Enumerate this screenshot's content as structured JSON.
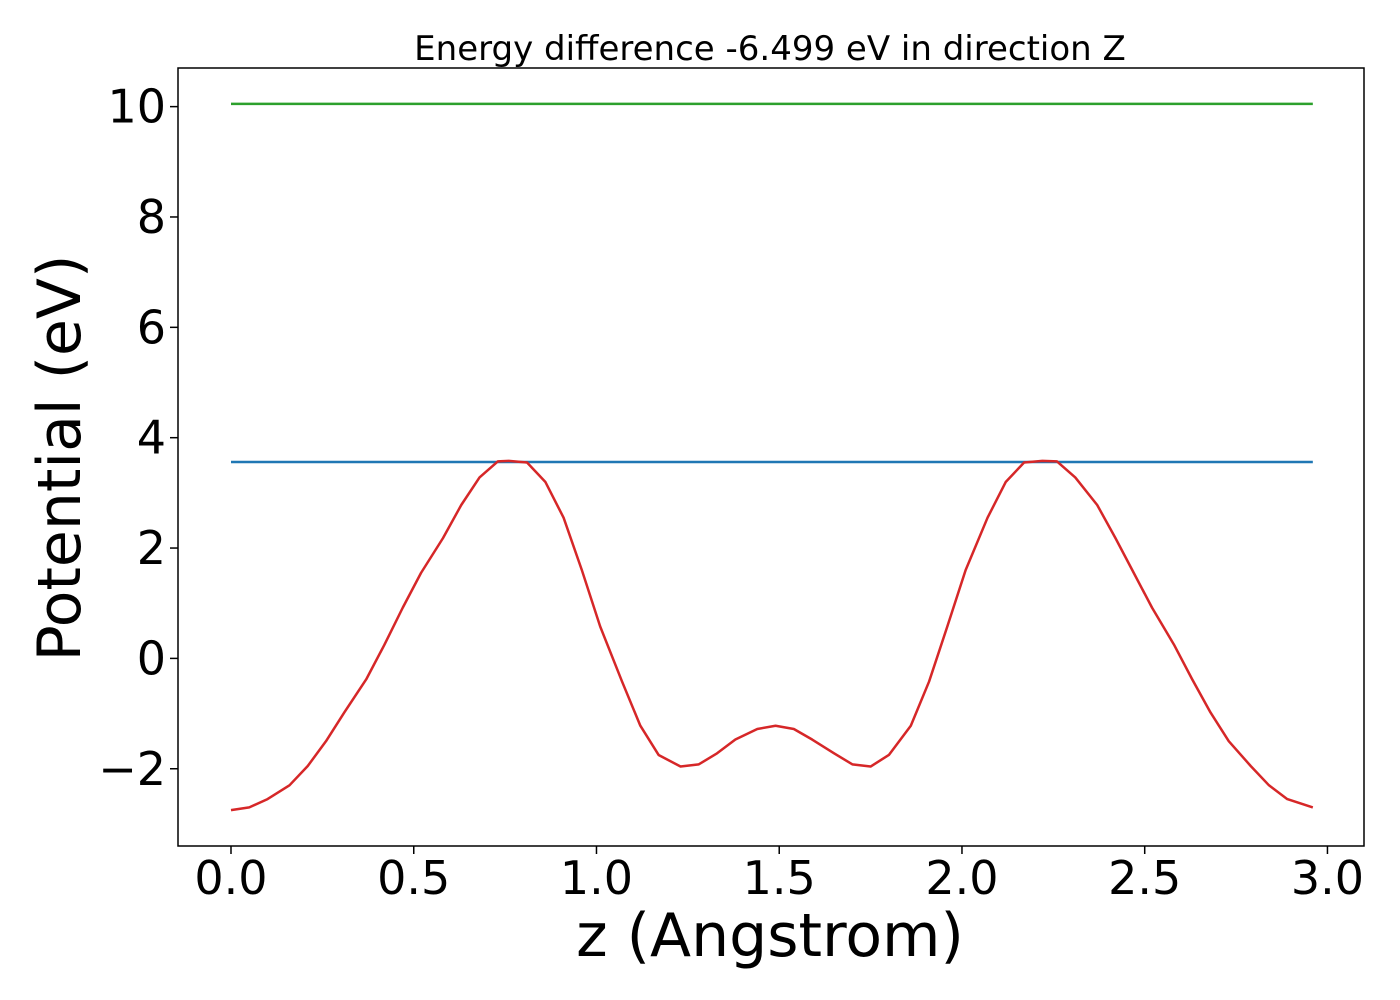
{
  "chart_data": {
    "type": "line",
    "title": "Energy difference -6.499 eV in direction Z",
    "xlabel": "z (Angstrom)",
    "ylabel": "Potential (eV)",
    "xlim": [
      -0.145,
      3.1
    ],
    "ylim": [
      -3.4,
      10.7
    ],
    "xticks": [
      0.0,
      0.5,
      1.0,
      1.5,
      2.0,
      2.5,
      3.0
    ],
    "xtick_labels": [
      "0.0",
      "0.5",
      "1.0",
      "1.5",
      "2.0",
      "2.5",
      "3.0"
    ],
    "yticks": [
      -2,
      0,
      2,
      4,
      6,
      8,
      10
    ],
    "ytick_labels": [
      "−2",
      "0",
      "2",
      "4",
      "6",
      "8",
      "10"
    ],
    "grid": false,
    "series": [
      {
        "color": "#2ca02c",
        "x": [
          0.0,
          2.96
        ],
        "y": [
          10.05,
          10.05
        ]
      },
      {
        "color": "#1f77b4",
        "x": [
          0.0,
          2.96
        ],
        "y": [
          3.56,
          3.56
        ]
      },
      {
        "color": "#d62728",
        "x": [
          0.0,
          0.05,
          0.1,
          0.16,
          0.21,
          0.26,
          0.31,
          0.37,
          0.42,
          0.47,
          0.52,
          0.58,
          0.63,
          0.68,
          0.73,
          0.76,
          0.81,
          0.86,
          0.91,
          0.96,
          1.01,
          1.07,
          1.12,
          1.17,
          1.23,
          1.28,
          1.33,
          1.38,
          1.44,
          1.49,
          1.54,
          1.59,
          1.65,
          1.7,
          1.75,
          1.8,
          1.86,
          1.91,
          1.96,
          2.01,
          2.07,
          2.12,
          2.17,
          2.22,
          2.26,
          2.31,
          2.37,
          2.42,
          2.47,
          2.52,
          2.58,
          2.63,
          2.68,
          2.73,
          2.79,
          2.84,
          2.89,
          2.96
        ],
        "y": [
          -2.75,
          -2.7,
          -2.55,
          -2.3,
          -1.95,
          -1.5,
          -0.98,
          -0.38,
          0.25,
          0.92,
          1.55,
          2.18,
          2.78,
          3.28,
          3.57,
          3.58,
          3.55,
          3.2,
          2.55,
          1.6,
          0.58,
          -0.42,
          -1.22,
          -1.75,
          -1.96,
          -1.92,
          -1.72,
          -1.47,
          -1.28,
          -1.22,
          -1.28,
          -1.47,
          -1.72,
          -1.92,
          -1.96,
          -1.75,
          -1.22,
          -0.42,
          0.58,
          1.6,
          2.55,
          3.2,
          3.55,
          3.58,
          3.57,
          3.28,
          2.78,
          2.18,
          1.55,
          0.92,
          0.25,
          -0.38,
          -0.98,
          -1.5,
          -1.95,
          -2.3,
          -2.55,
          -2.7
        ]
      }
    ]
  }
}
